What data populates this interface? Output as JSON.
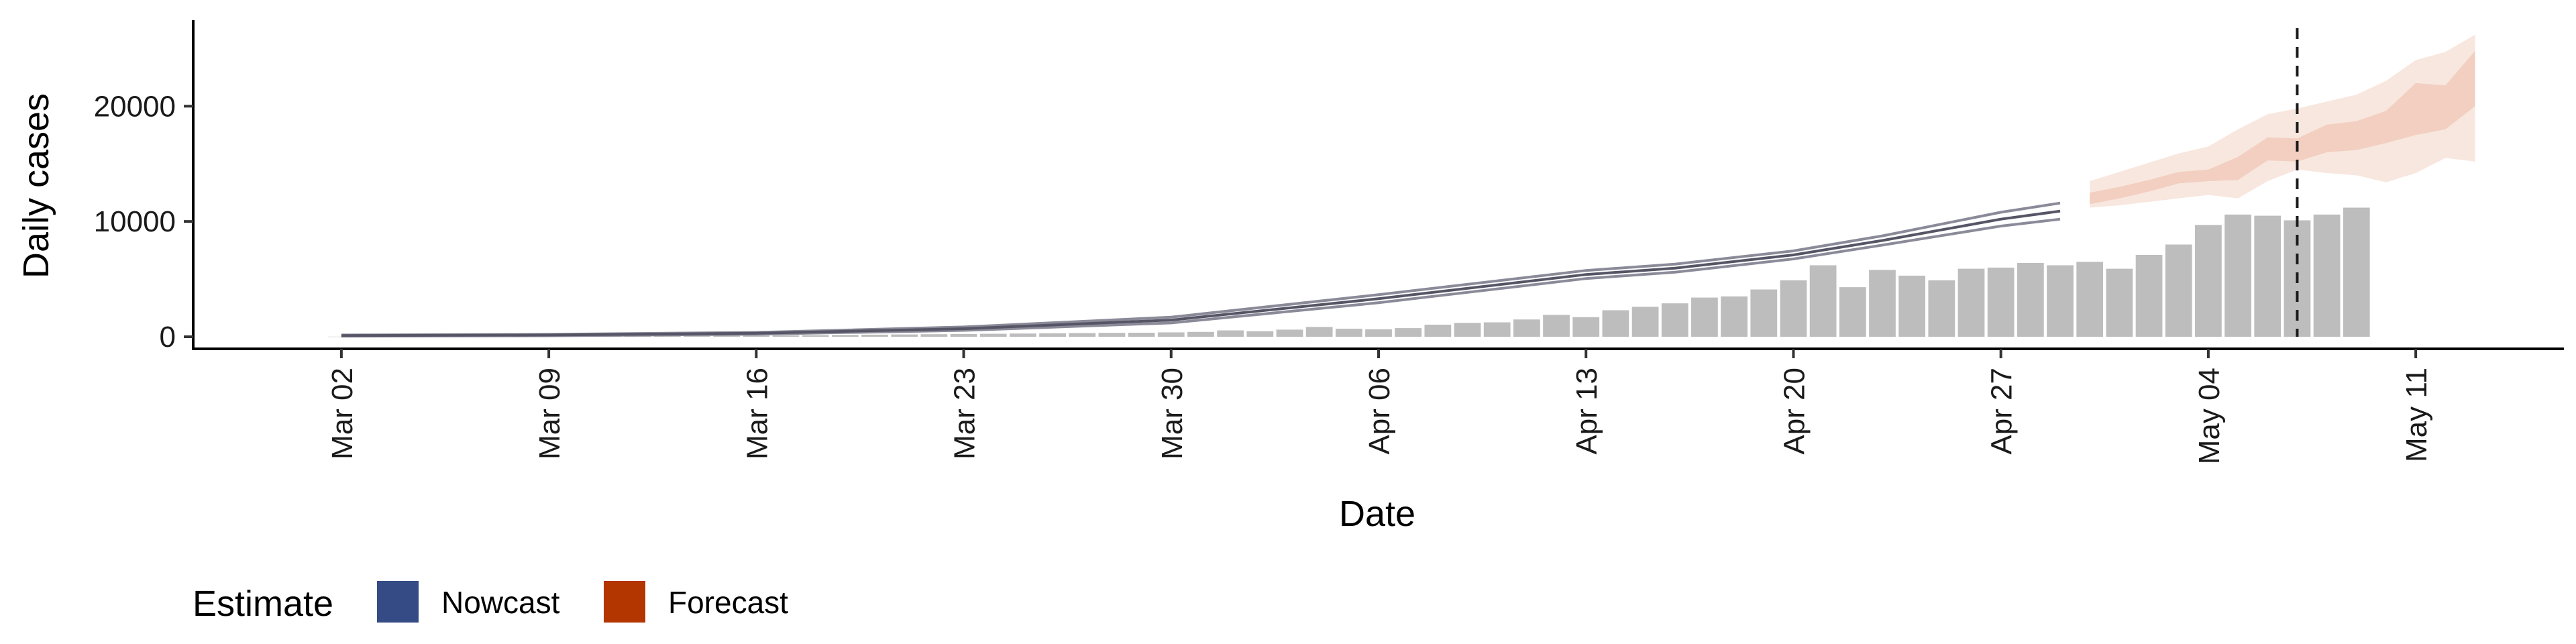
{
  "chart_data": {
    "type": "bar",
    "title": "",
    "xlabel": "Date",
    "ylabel": "Daily cases",
    "x_ticks": [
      "Mar 02",
      "Mar 09",
      "Mar 16",
      "Mar 23",
      "Mar 30",
      "Apr 06",
      "Apr 13",
      "Apr 20",
      "Apr 27",
      "May 04",
      "May 11"
    ],
    "y_ticks": [
      "0",
      "10000",
      "20000"
    ],
    "ylim": [
      0,
      27000
    ],
    "xlim_dates": [
      "2020-02-26",
      "2020-05-16"
    ],
    "grid": false,
    "legend_position": "bottom-left",
    "legend": {
      "title": "Estimate",
      "items": [
        {
          "label": "Nowcast",
          "color": "#344b85"
        },
        {
          "label": "Forecast",
          "color": "#b33500"
        }
      ]
    },
    "colors": {
      "bars": "#bdbdbd",
      "nowcast_line": "#555566",
      "forecast_band": "#e7a98d"
    },
    "reference_line_date": "2020-05-07",
    "observed_cases": {
      "start_date": "2020-03-02",
      "values": [
        10,
        12,
        15,
        20,
        25,
        30,
        35,
        40,
        45,
        55,
        65,
        75,
        85,
        95,
        110,
        125,
        140,
        160,
        180,
        200,
        220,
        240,
        260,
        280,
        300,
        320,
        340,
        350,
        380,
        420,
        550,
        480,
        620,
        850,
        700,
        650,
        750,
        1050,
        1200,
        1250,
        1500,
        1900,
        1700,
        2300,
        2600,
        2900,
        3400,
        3500,
        4100,
        4900,
        6200,
        4300,
        5800,
        5300,
        4900,
        5900,
        6000,
        6400,
        6200,
        6500,
        5900,
        7100,
        8000,
        9700,
        10600,
        10500,
        10100,
        10600,
        11200
      ]
    },
    "nowcast_estimate": {
      "dates": [
        "2020-03-02",
        "2020-03-09",
        "2020-03-16",
        "2020-03-23",
        "2020-03-30",
        "2020-04-06",
        "2020-04-13",
        "2020-04-16",
        "2020-04-20",
        "2020-04-23",
        "2020-04-27",
        "2020-04-29"
      ],
      "median": [
        100,
        150,
        300,
        700,
        1450,
        3300,
        5400,
        5950,
        7100,
        8350,
        10200,
        10900
      ],
      "lower": [
        50,
        90,
        220,
        550,
        1200,
        2950,
        5050,
        5600,
        6750,
        7950,
        9600,
        10200
      ],
      "upper": [
        150,
        210,
        380,
        850,
        1700,
        3650,
        5750,
        6300,
        7450,
        8750,
        10800,
        11600
      ]
    },
    "forecast": {
      "dates": [
        "2020-04-30",
        "2020-05-01",
        "2020-05-02",
        "2020-05-03",
        "2020-05-04",
        "2020-05-05",
        "2020-05-06",
        "2020-05-07",
        "2020-05-08",
        "2020-05-09",
        "2020-05-10",
        "2020-05-11",
        "2020-05-12",
        "2020-05-13"
      ],
      "lower_outer": [
        11200,
        11400,
        11700,
        12000,
        12300,
        12000,
        13500,
        14500,
        14200,
        14000,
        13400,
        14200,
        15500,
        15200
      ],
      "lower_inner": [
        11500,
        12000,
        12600,
        13300,
        13500,
        13600,
        15300,
        15200,
        16000,
        16200,
        16800,
        17500,
        18000,
        20000
      ],
      "upper_inner": [
        12500,
        13000,
        13600,
        14300,
        14500,
        15600,
        17300,
        17200,
        18400,
        18700,
        19600,
        22000,
        21800,
        24800
      ],
      "upper_outer": [
        13500,
        14300,
        15100,
        15900,
        16500,
        18000,
        19300,
        19800,
        20400,
        21000,
        22200,
        24000,
        24700,
        26200
      ]
    }
  }
}
